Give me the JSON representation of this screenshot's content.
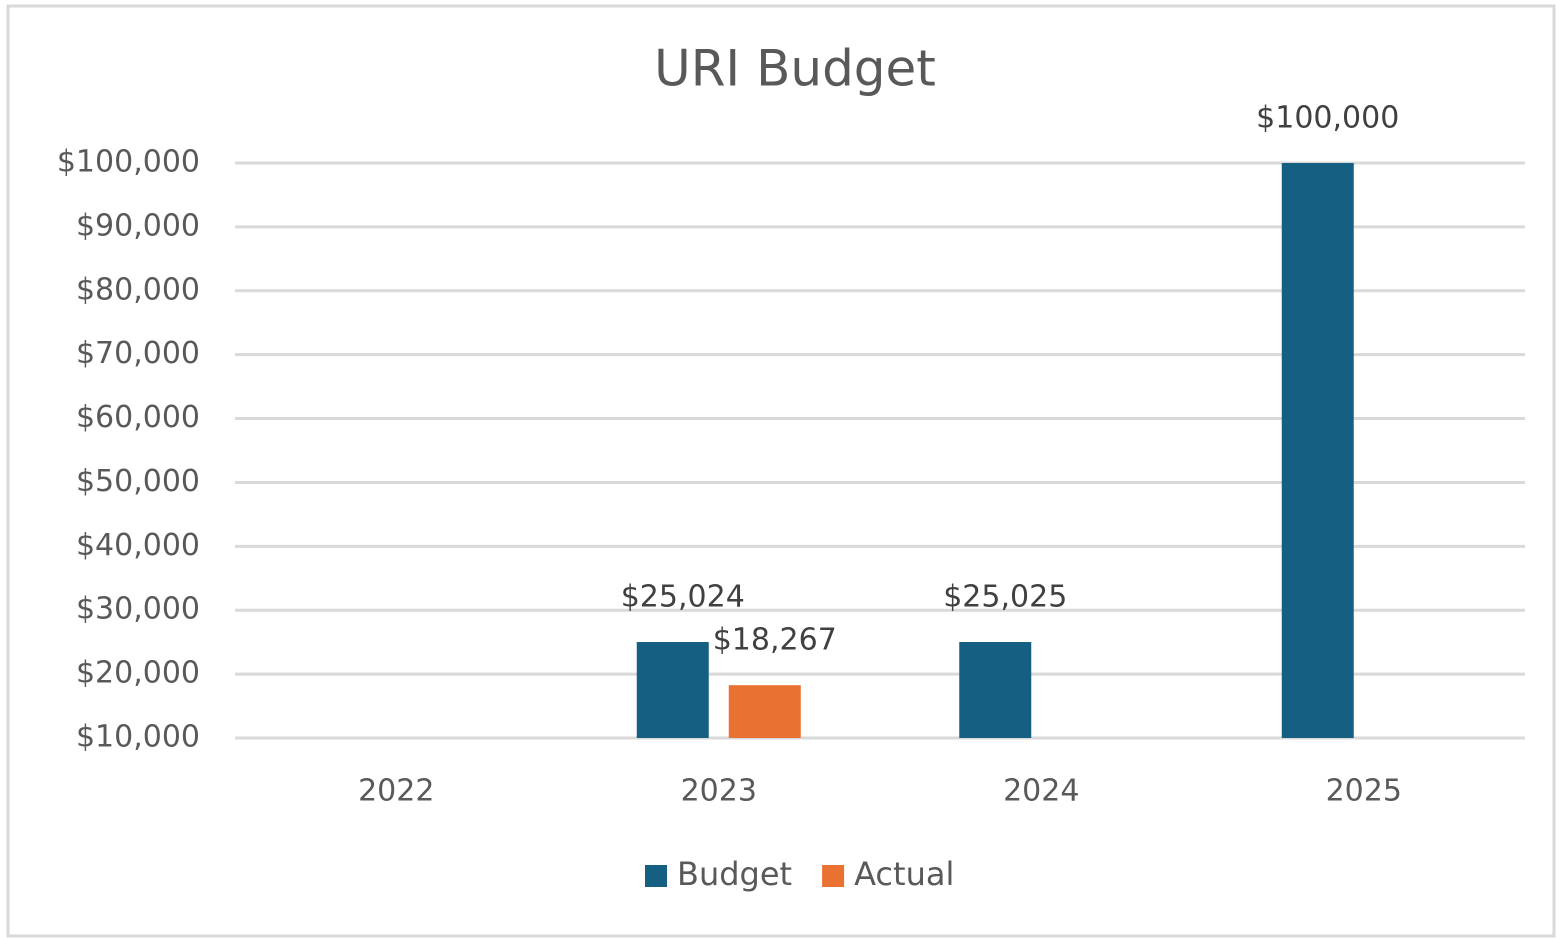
{
  "chart_data": {
    "type": "bar",
    "title": "URI Budget",
    "categories": [
      "2022",
      "2023",
      "2024",
      "2025"
    ],
    "series": [
      {
        "name": "Budget",
        "color": "#156082",
        "values": [
          null,
          25024,
          25025,
          100000
        ],
        "value_labels": [
          null,
          "$25,024",
          "$25,025",
          "$100,000"
        ]
      },
      {
        "name": "Actual",
        "color": "#e97132",
        "values": [
          null,
          18267,
          null,
          null
        ],
        "value_labels": [
          null,
          "$18,267",
          null,
          null
        ]
      }
    ],
    "ylim": [
      10000,
      100000
    ],
    "yticks": [
      {
        "value": 10000,
        "label": "$10,000"
      },
      {
        "value": 20000,
        "label": "$20,000"
      },
      {
        "value": 30000,
        "label": "$30,000"
      },
      {
        "value": 40000,
        "label": "$40,000"
      },
      {
        "value": 50000,
        "label": "$50,000"
      },
      {
        "value": 60000,
        "label": "$60,000"
      },
      {
        "value": 70000,
        "label": "$70,000"
      },
      {
        "value": 80000,
        "label": "$80,000"
      },
      {
        "value": 90000,
        "label": "$90,000"
      },
      {
        "value": 100000,
        "label": "$100,000"
      }
    ],
    "grid": true,
    "legend": "bottom"
  }
}
